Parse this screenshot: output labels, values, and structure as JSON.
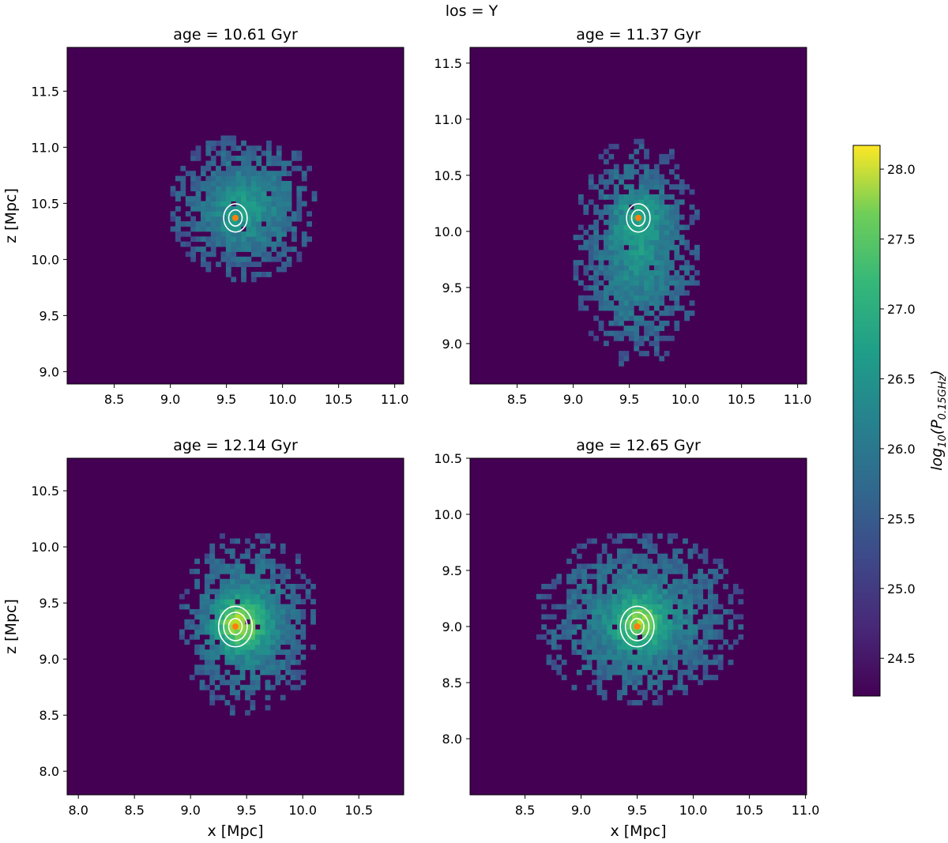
{
  "figure": {
    "suptitle": "los = Y",
    "background": "#ffffff",
    "colormap": "viridis",
    "background_color": "#440154",
    "contour_color": "#ffffff",
    "marker_color": "#ff7f0e"
  },
  "chart_data": [
    {
      "type": "heatmap",
      "title": "age = 10.61 Gyr",
      "xlabel": "",
      "ylabel": "z [Mpc]",
      "xlim": [
        8.08,
        11.08
      ],
      "ylim": [
        8.89,
        11.89
      ],
      "xticks": [
        "8.5",
        "9.0",
        "9.5",
        "10.0",
        "10.5",
        "11.0"
      ],
      "yticks": [
        "9.0",
        "9.5",
        "10.0",
        "10.5",
        "11.0",
        "11.5"
      ],
      "marker": {
        "x": 9.58,
        "y": 10.37
      },
      "emission_extent": {
        "x": [
          9.0,
          10.3
        ],
        "y": [
          9.8,
          11.1
        ]
      },
      "peak_log10_P": 26.2
    },
    {
      "type": "heatmap",
      "title": "age = 11.37 Gyr",
      "xlabel": "",
      "ylabel": "",
      "xlim": [
        8.08,
        11.08
      ],
      "ylim": [
        8.64,
        11.64
      ],
      "xticks": [
        "8.5",
        "9.0",
        "9.5",
        "10.0",
        "10.5",
        "11.0"
      ],
      "yticks": [
        "9.0",
        "9.5",
        "10.0",
        "10.5",
        "11.0",
        "11.5"
      ],
      "marker": {
        "x": 9.58,
        "y": 10.12
      },
      "emission_extent": {
        "x": [
          9.0,
          10.1
        ],
        "y": [
          8.8,
          10.8
        ]
      },
      "peak_log10_P": 26.6
    },
    {
      "type": "heatmap",
      "title": "age = 12.14 Gyr",
      "xlabel": "x [Mpc]",
      "ylabel": "z [Mpc]",
      "xlim": [
        7.9,
        10.9
      ],
      "ylim": [
        7.79,
        10.79
      ],
      "xticks": [
        "8.0",
        "8.5",
        "9.0",
        "9.5",
        "10.0",
        "10.5"
      ],
      "yticks": [
        "8.0",
        "8.5",
        "9.0",
        "9.5",
        "10.0",
        "10.5"
      ],
      "marker": {
        "x": 9.4,
        "y": 9.29
      },
      "emission_extent": {
        "x": [
          8.9,
          10.1
        ],
        "y": [
          8.5,
          10.1
        ]
      },
      "peak_log10_P": 27.6
    },
    {
      "type": "heatmap",
      "title": "age = 12.65 Gyr",
      "xlabel": "x [Mpc]",
      "ylabel": "",
      "xlim": [
        8.01,
        11.01
      ],
      "ylim": [
        7.5,
        10.5
      ],
      "xticks": [
        "8.5",
        "9.0",
        "9.5",
        "10.0",
        "10.5",
        "11.0"
      ],
      "yticks": [
        "8.0",
        "8.5",
        "9.0",
        "9.5",
        "10.0",
        "10.5"
      ],
      "marker": {
        "x": 9.5,
        "y": 9.0
      },
      "emission_extent": {
        "x": [
          8.6,
          10.4
        ],
        "y": [
          8.3,
          9.8
        ]
      },
      "peak_log10_P": 27.3
    }
  ],
  "colorbar": {
    "label": "log10(P0.15GHz)",
    "label_base": "log",
    "label_sub1": "10",
    "label_mid": "(P",
    "label_sub2": "0.15GHz",
    "label_end": ")",
    "range": [
      24.23,
      28.17
    ],
    "ticks": [
      "24.5",
      "25.0",
      "25.5",
      "26.0",
      "26.5",
      "27.0",
      "27.5",
      "28.0"
    ]
  }
}
